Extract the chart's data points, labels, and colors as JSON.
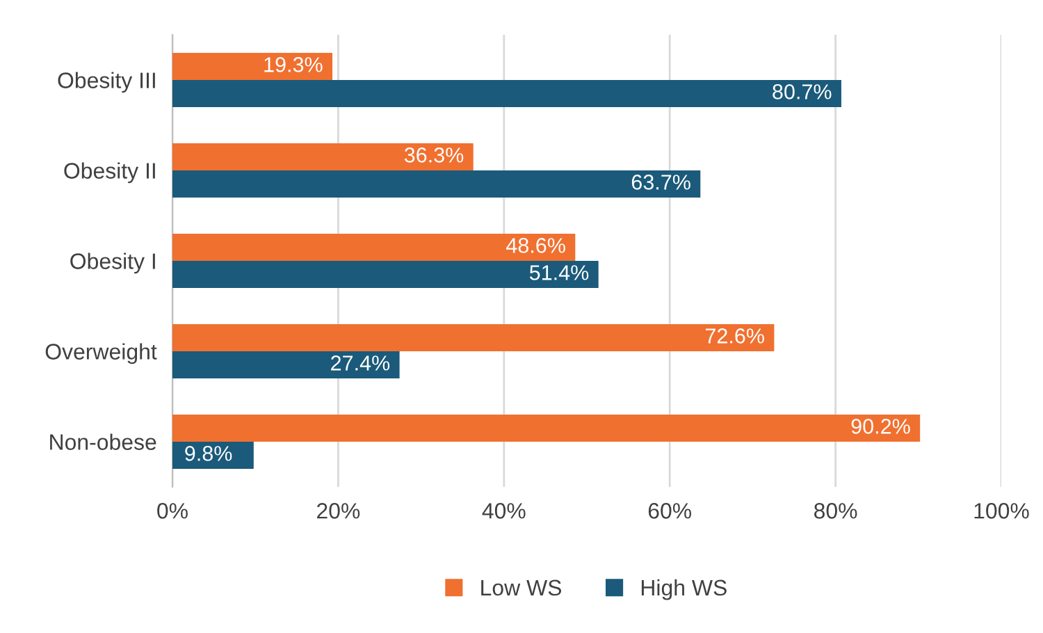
{
  "chart_data": {
    "type": "bar",
    "orientation": "horizontal",
    "categories": [
      "Obesity III",
      "Obesity II",
      "Obesity I",
      "Overweight",
      "Non-obese"
    ],
    "series": [
      {
        "name": "Low WS",
        "color": "#f07030",
        "values": [
          19.3,
          36.3,
          48.6,
          72.6,
          90.2
        ],
        "value_labels": [
          "19.3%",
          "36.3%",
          "48.6%",
          "72.6%",
          "90.2%"
        ]
      },
      {
        "name": "High WS",
        "color": "#1b5a7a",
        "values": [
          80.7,
          63.7,
          51.4,
          27.4,
          9.8
        ],
        "value_labels": [
          "80.7%",
          "63.7%",
          "51.4%",
          "27.4%",
          "9.8%"
        ]
      }
    ],
    "xlim": [
      0,
      100
    ],
    "xticks": [
      {
        "value": 0,
        "label": "0%"
      },
      {
        "value": 20,
        "label": "20%"
      },
      {
        "value": 40,
        "label": "40%"
      },
      {
        "value": 60,
        "label": "60%"
      },
      {
        "value": 80,
        "label": "80%"
      },
      {
        "value": 100,
        "label": "100%"
      }
    ],
    "grid": "x",
    "legend": "bottom"
  }
}
